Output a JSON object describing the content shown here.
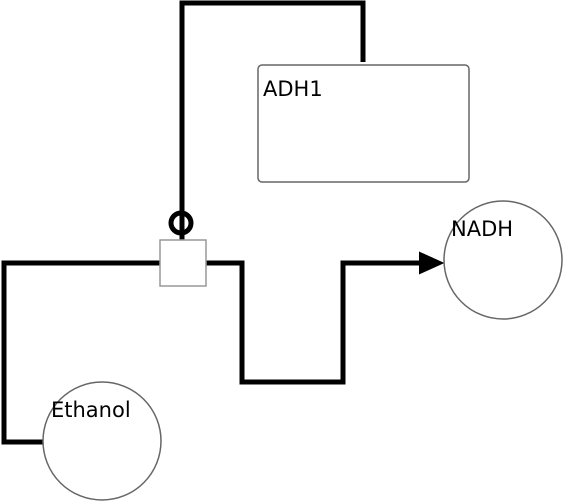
{
  "nodes": {
    "enzyme": {
      "label": "ADH1"
    },
    "substrate": {
      "label": "Ethanol"
    },
    "product": {
      "label": "NADH"
    }
  },
  "process": {
    "shape": "square",
    "fill": "#ffffff",
    "stroke": "#999999"
  },
  "edges": {
    "catalysis": {
      "from": "ADH1",
      "to": "process",
      "marker": "circle"
    },
    "consumption": {
      "from": "Ethanol",
      "to": "process",
      "marker": "none"
    },
    "production": {
      "from": "process",
      "to": "NADH",
      "marker": "arrow"
    }
  },
  "colors": {
    "edge": "#000000",
    "node_stroke": "#666666",
    "process_stroke": "#999999",
    "background": "#ffffff"
  }
}
